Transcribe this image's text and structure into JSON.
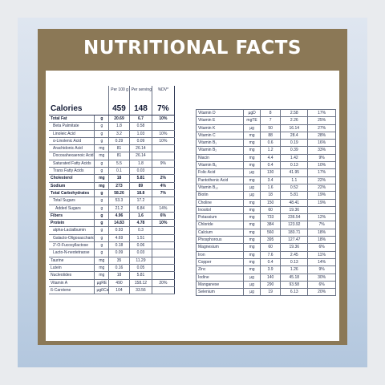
{
  "title": "NUTRITIONAL FACTS",
  "headers": {
    "per100": "Per 100 g",
    "perServing": "Per serving",
    "dv": "%DV*"
  },
  "calories": {
    "label": "Calories",
    "per100": "459",
    "perServing": "148",
    "dv": "7%"
  },
  "left_rows": [
    {
      "name": "Total Fat",
      "unit": "g",
      "per100": "20.69",
      "perServing": "6.7",
      "dv": "10%",
      "style": "bold"
    },
    {
      "name": "Beta Palmitate",
      "unit": "g",
      "per100": "1.8",
      "perServing": "0.58",
      "dv": "",
      "style": "indent"
    },
    {
      "name": "Linoleic Acid",
      "unit": "g",
      "per100": "3.2",
      "perServing": "1.03",
      "dv": "10%",
      "style": "indent"
    },
    {
      "name": "α-Linolenic Acid",
      "unit": "g",
      "per100": "0.29",
      "perServing": "0.09",
      "dv": "10%",
      "style": "indent"
    },
    {
      "name": "Arachidonic Acid",
      "unit": "mg",
      "per100": "81",
      "perServing": "26.14",
      "dv": "",
      "style": "indent"
    },
    {
      "name": "Docosahexaenoic Acid",
      "unit": "mg",
      "per100": "81",
      "perServing": "26.14",
      "dv": "",
      "style": "indent"
    },
    {
      "name": "Saturated Fatty Acids",
      "unit": "g",
      "per100": "5.5",
      "perServing": "1.8",
      "dv": "9%",
      "style": "indent"
    },
    {
      "name": "Trans Fatty Acids",
      "unit": "g",
      "per100": "0.1",
      "perServing": "0.03",
      "dv": "",
      "style": "indent"
    },
    {
      "name": "Cholesterol",
      "unit": "mg",
      "per100": "18",
      "perServing": "5.81",
      "dv": "2%",
      "style": "bold"
    },
    {
      "name": "Sodium",
      "unit": "mg",
      "per100": "273",
      "perServing": "89",
      "dv": "4%",
      "style": "bold"
    },
    {
      "name": "Total Carbohydrates",
      "unit": "g",
      "per100": "58.26",
      "perServing": "18.8",
      "dv": "7%",
      "style": "bold"
    },
    {
      "name": "Total Sugars",
      "unit": "g",
      "per100": "53.3",
      "perServing": "17.2",
      "dv": "",
      "style": "indent"
    },
    {
      "name": "Added Sugars",
      "unit": "g",
      "per100": "21.2",
      "perServing": "6.84",
      "dv": "14%",
      "style": "indent2"
    },
    {
      "name": "Fibers",
      "unit": "g",
      "per100": "4.96",
      "perServing": "1.6",
      "dv": "6%",
      "style": "bold"
    },
    {
      "name": "Protein",
      "unit": "g",
      "per100": "14.83",
      "perServing": "4.78",
      "dv": "10%",
      "style": "bold"
    },
    {
      "name": "alpha-Lactalbumin",
      "unit": "g",
      "per100": "0.93",
      "perServing": "0.3",
      "dv": "",
      "style": "indent"
    },
    {
      "name": "Galacto-Oligosaccharides",
      "unit": "g",
      "per100": "4.69",
      "perServing": "1.51",
      "dv": "",
      "style": "indent"
    },
    {
      "name": "2'-O-Fucosyllactose",
      "unit": "g",
      "per100": "0.18",
      "perServing": "0.06",
      "dv": "",
      "style": "indent"
    },
    {
      "name": "Lacto-N-neotetraose",
      "unit": "g",
      "per100": "0.09",
      "perServing": "0.03",
      "dv": "",
      "style": "indent"
    },
    {
      "name": "Taurine",
      "unit": "mg",
      "per100": "35",
      "perServing": "11.29",
      "dv": "",
      "style": "plain"
    },
    {
      "name": "Lutein",
      "unit": "mg",
      "per100": "0.16",
      "perServing": "0.05",
      "dv": "",
      "style": "plain"
    },
    {
      "name": "Nucleotides",
      "unit": "mg",
      "per100": "18",
      "perServing": "5.81",
      "dv": "",
      "style": "plain"
    },
    {
      "name": "Vitamin A",
      "unit": "µgRE",
      "per100": "490",
      "perServing": "158.12",
      "dv": "20%",
      "style": "plain"
    },
    {
      "name": "ß-Carotene",
      "unit": "µgßCar",
      "per100": "104",
      "perServing": "33.56",
      "dv": "",
      "style": "plain"
    }
  ],
  "right_rows": [
    {
      "name": "Vitamin D",
      "unit": "µgD",
      "per100": "8",
      "perServing": "2.58",
      "dv": "17%"
    },
    {
      "name": "Vitamin E",
      "unit": "mgTE",
      "per100": "7",
      "perServing": "2.26",
      "dv": "25%"
    },
    {
      "name": "Vitamin K",
      "unit": "µg",
      "per100": "50",
      "perServing": "16.14",
      "dv": "27%"
    },
    {
      "name": "Vitamin C",
      "unit": "mg",
      "per100": "88",
      "perServing": "28.4",
      "dv": "28%"
    },
    {
      "name": "Vitamin B₁",
      "unit": "mg",
      "per100": "0.6",
      "perServing": "0.19",
      "dv": "16%"
    },
    {
      "name": "Vitamin B₂",
      "unit": "mg",
      "per100": "1.2",
      "perServing": "0.39",
      "dv": "33%"
    },
    {
      "name": "Niacin",
      "unit": "mg",
      "per100": "4.4",
      "perServing": "1.42",
      "dv": "9%"
    },
    {
      "name": "Vitamin B₆",
      "unit": "mg",
      "per100": "0.4",
      "perServing": "0.13",
      "dv": "10%"
    },
    {
      "name": "Folic Acid",
      "unit": "µg",
      "per100": "130",
      "perServing": "41.95",
      "dv": "17%"
    },
    {
      "name": "Pantothenic Acid",
      "unit": "mg",
      "per100": "3.4",
      "perServing": "1.1",
      "dv": "22%"
    },
    {
      "name": "Vitamin B₁₂",
      "unit": "µg",
      "per100": "1.6",
      "perServing": "0.52",
      "dv": "22%"
    },
    {
      "name": "Biotin",
      "unit": "µg",
      "per100": "18",
      "perServing": "5.81",
      "dv": "19%"
    },
    {
      "name": "Choline",
      "unit": "mg",
      "per100": "150",
      "perServing": "48.41",
      "dv": "19%"
    },
    {
      "name": "Inositol",
      "unit": "mg",
      "per100": "60",
      "perServing": "19.36",
      "dv": ""
    },
    {
      "name": "Potassium",
      "unit": "mg",
      "per100": "733",
      "perServing": "236.54",
      "dv": "12%"
    },
    {
      "name": "Chloride",
      "unit": "mg",
      "per100": "384",
      "perServing": "123.92",
      "dv": "7%"
    },
    {
      "name": "Calcium",
      "unit": "mg",
      "per100": "560",
      "perServing": "180.71",
      "dv": "18%"
    },
    {
      "name": "Phosphorous",
      "unit": "mg",
      "per100": "395",
      "perServing": "127.47",
      "dv": "18%"
    },
    {
      "name": "Magnesium",
      "unit": "mg",
      "per100": "60",
      "perServing": "19.36",
      "dv": "6%"
    },
    {
      "name": "Iron",
      "unit": "mg",
      "per100": "7.6",
      "perServing": "2.45",
      "dv": "11%"
    },
    {
      "name": "Copper",
      "unit": "mg",
      "per100": "0.4",
      "perServing": "0.13",
      "dv": "14%"
    },
    {
      "name": "Zinc",
      "unit": "mg",
      "per100": "3.9",
      "perServing": "1.26",
      "dv": "9%"
    },
    {
      "name": "Iodine",
      "unit": "µg",
      "per100": "140",
      "perServing": "45.18",
      "dv": "30%"
    },
    {
      "name": "Manganese",
      "unit": "µg",
      "per100": "290",
      "perServing": "93.58",
      "dv": "6%"
    },
    {
      "name": "Selenium",
      "unit": "µg",
      "per100": "19",
      "perServing": "6.13",
      "dv": "20%"
    }
  ]
}
